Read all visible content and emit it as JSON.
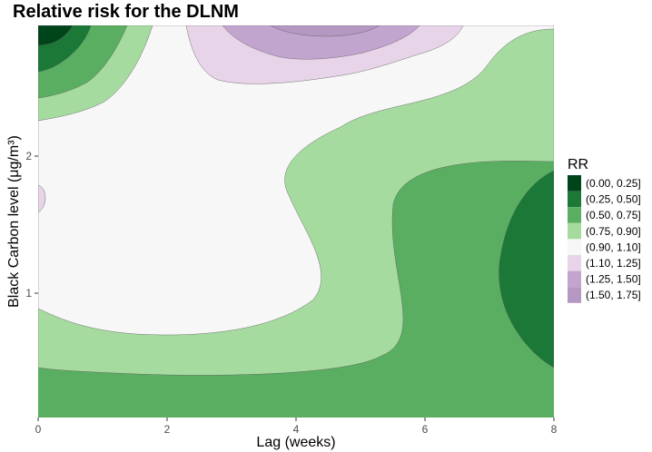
{
  "chart_data": {
    "type": "contour",
    "title": "Relative risk for the DLNM",
    "xlabel": "Lag (weeks)",
    "ylabel": "Black Carbon level (μg/m³)",
    "xlim": [
      0,
      8
    ],
    "ylim": [
      0.1,
      2.95
    ],
    "x_ticks": [
      "0",
      "2",
      "4",
      "6",
      "8"
    ],
    "y_ticks": [
      "1",
      "2"
    ],
    "grid": false,
    "legend_position": "right",
    "legend": {
      "title": "RR",
      "entries": [
        {
          "label": "(0.00, 0.25]",
          "color": "#00441b"
        },
        {
          "label": "(0.25, 0.50]",
          "color": "#1b7837"
        },
        {
          "label": "(0.50, 0.75]",
          "color": "#5aae61"
        },
        {
          "label": "(0.75, 0.90]",
          "color": "#a6dba0"
        },
        {
          "label": "(0.90, 1.10]",
          "color": "#f7f7f7"
        },
        {
          "label": "(1.10, 1.25]",
          "color": "#e7d4e8"
        },
        {
          "label": "(1.25, 1.50]",
          "color": "#c2a5cf"
        },
        {
          "label": "(1.50, 1.75]",
          "color": "#b598c2"
        }
      ]
    }
  }
}
